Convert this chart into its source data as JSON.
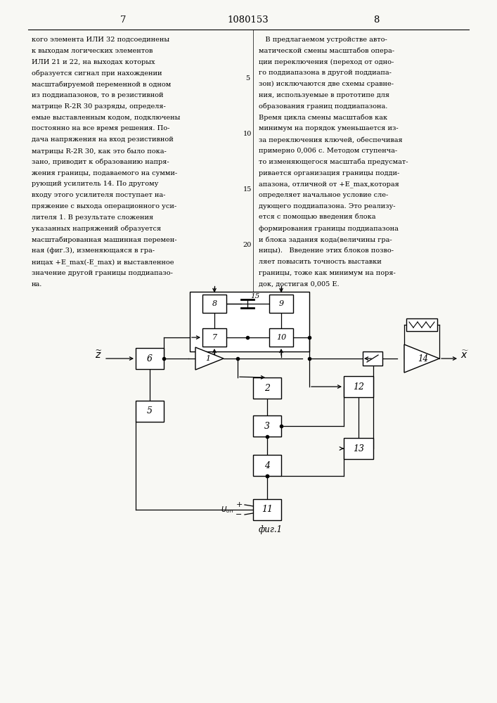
{
  "page_width": 7.07,
  "page_height": 10.0,
  "background": "#f8f8f4",
  "header_num_left": "7",
  "header_num_center": "1080153",
  "header_num_right": "8",
  "left_col_lines": [
    "кого элемента ИЛИ 32 подсоединены",
    "к выходам логических элементов",
    "ИЛИ 21 и 22, на выходах которых",
    "образуется сигнал при нахождении",
    "масштабируемой переменной в одном",
    "из поддиапазонов, то в резистивной",
    "матрице R-2R 30 разряды, определя-",
    "емые выставленным кодом, подключены",
    "постоянно на все время решения. По-",
    "дача напряжения на вход резистивной",
    "матрицы R-2R 30, как это было пока-",
    "зано, приводит к образованию напря-",
    "жения границы, подаваемого на сумми-",
    "рующий усилитель 14. По другому",
    "входу этого усилителя поступает на-",
    "пряжение с выхода операционного уси-",
    "лителя 1. В результате сложения",
    "указанных напряжений образуется",
    "масштабированная машинная перемен-",
    "ная (фиг.3), изменяющаяся в гра-",
    "ницах +E_max(-E_max) и выставленное",
    "значение другой границы поддиапазо-",
    "на."
  ],
  "right_col_lines": [
    "   В предлагаемом устройстве авто-",
    "матической смены масштабов опера-",
    "ции переключения (переход от одно-",
    "го поддиапазона в другой поддиапа-",
    "зон) исключаются две схемы сравне-",
    "ния, используемые в прототипе для",
    "образования границ поддиапазона.",
    "Время цикла смены масштабов как",
    "минимум на порядок уменьшается из-",
    "за переключения ключей, обеспечивая",
    "примерно 0,006 с. Методом ступенча-",
    "то изменяющегося масштаба предусмат-",
    "ривается организация границы подди-",
    "апазона, отличной от +E_max,которая",
    "определяет начальное условие сле-",
    "дующего поддиапазона. Это реализу-",
    "ется с помощью введения блока",
    "формирования границы поддиапазона",
    "и блока задания кода(величины гра-",
    "ницы).   Введение этих блоков позво-",
    "ляет повысить точность выставки",
    "границы, тоже как минимум на поря-",
    "док, достигая 0,005 Е."
  ],
  "line_numbers": [
    [
      5,
      4
    ],
    [
      10,
      9
    ],
    [
      15,
      14
    ],
    [
      20,
      19
    ]
  ],
  "fig_caption": "фиг.1"
}
